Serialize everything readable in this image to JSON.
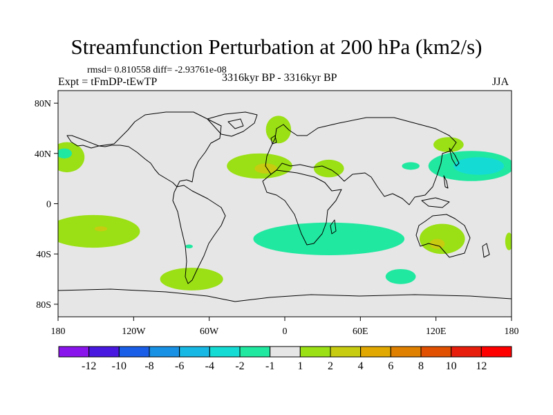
{
  "chart_data": {
    "type": "heatmap",
    "title": "Streamfunction Perturbation at 200 hPa (km2/s)",
    "stats_label": "rmsd= 0.810558 diff= -2.93761e-08",
    "expt_label": "Expt = tFmDP-tEwTP",
    "period_label": "3316kyr BP - 3316kyr BP",
    "season_label": "JJA",
    "xlim": [
      -180,
      180
    ],
    "ylim": [
      -90,
      90
    ],
    "x_ticks": [
      {
        "value": -180,
        "label": "180"
      },
      {
        "value": -120,
        "label": "120W"
      },
      {
        "value": -60,
        "label": "60W"
      },
      {
        "value": 0,
        "label": "0"
      },
      {
        "value": 60,
        "label": "60E"
      },
      {
        "value": 120,
        "label": "120E"
      },
      {
        "value": 180,
        "label": "180"
      }
    ],
    "y_ticks": [
      {
        "value": 80,
        "label": "80N"
      },
      {
        "value": 40,
        "label": "40N"
      },
      {
        "value": 0,
        "label": "0"
      },
      {
        "value": -40,
        "label": "40S"
      },
      {
        "value": -80,
        "label": "80S"
      }
    ],
    "colorbar": {
      "boundaries": [
        "-12",
        "-10",
        "-8",
        "-6",
        "-4",
        "-2",
        "-1",
        "1",
        "2",
        "4",
        "6",
        "8",
        "10",
        "12"
      ],
      "colors": [
        "#8a14ec",
        "#4818e0",
        "#1a5ee8",
        "#1890e4",
        "#18b8e4",
        "#14dcd4",
        "#20e8a0",
        "#e6e6e6",
        "#9ae014",
        "#c8cc10",
        "#e0a800",
        "#e08000",
        "#e05000",
        "#e81e0c",
        "#ff0000"
      ]
    },
    "regions": [
      {
        "level": "1 to 2",
        "color": "#9ae014",
        "center": [
          -173,
          37
        ],
        "extent": [
          14,
          12
        ]
      },
      {
        "level": "-1 to -2",
        "color": "#20e8a0",
        "center": [
          -175,
          40
        ],
        "extent": [
          6,
          4
        ]
      },
      {
        "level": "1 to 2",
        "color": "#9ae014",
        "center": [
          -152,
          -22
        ],
        "extent": [
          37,
          13
        ]
      },
      {
        "level": "2 to 4",
        "color": "#c8cc10",
        "center": [
          -146,
          -20
        ],
        "extent": [
          5,
          2
        ]
      },
      {
        "level": "1 to 2",
        "color": "#9ae014",
        "center": [
          -74,
          -60
        ],
        "extent": [
          25,
          9
        ]
      },
      {
        "level": "-1 to -2",
        "color": "#20e8a0",
        "center": [
          -76,
          -34
        ],
        "extent": [
          3,
          1.5
        ]
      },
      {
        "level": "1 to 2",
        "color": "#9ae014",
        "center": [
          -20,
          30
        ],
        "extent": [
          26,
          10
        ]
      },
      {
        "level": "2 to 4",
        "color": "#c8cc10",
        "center": [
          -15,
          28
        ],
        "extent": [
          9,
          4
        ]
      },
      {
        "level": "1 to 2",
        "color": "#9ae014",
        "center": [
          -5,
          59
        ],
        "extent": [
          10,
          11
        ]
      },
      {
        "level": "1 to 2",
        "color": "#9ae014",
        "center": [
          35,
          28
        ],
        "extent": [
          12,
          7
        ]
      },
      {
        "level": "-1 to -2",
        "color": "#20e8a0",
        "center": [
          35,
          -28
        ],
        "extent": [
          60,
          13
        ]
      },
      {
        "level": "-1 to -2",
        "color": "#20e8a0",
        "center": [
          92,
          -58
        ],
        "extent": [
          12,
          6
        ]
      },
      {
        "level": "-1 to -2",
        "color": "#20e8a0",
        "center": [
          100,
          30
        ],
        "extent": [
          7,
          3
        ]
      },
      {
        "level": "1 to 2",
        "color": "#9ae014",
        "center": [
          130,
          47
        ],
        "extent": [
          12,
          6
        ]
      },
      {
        "level": "-1 to -2",
        "color": "#20e8a0",
        "center": [
          148,
          30
        ],
        "extent": [
          34,
          12
        ]
      },
      {
        "level": "-2 to -4",
        "color": "#14dcd4",
        "center": [
          154,
          30
        ],
        "extent": [
          20,
          7
        ]
      },
      {
        "level": "1 to 2",
        "color": "#9ae014",
        "center": [
          125,
          -28
        ],
        "extent": [
          18,
          12
        ]
      },
      {
        "level": "2 to 4",
        "color": "#c8cc10",
        "center": [
          121,
          -32
        ],
        "extent": [
          6,
          4
        ]
      },
      {
        "level": "1 to 2",
        "color": "#9ae014",
        "center": [
          178,
          -30
        ],
        "extent": [
          3,
          7
        ]
      }
    ]
  }
}
